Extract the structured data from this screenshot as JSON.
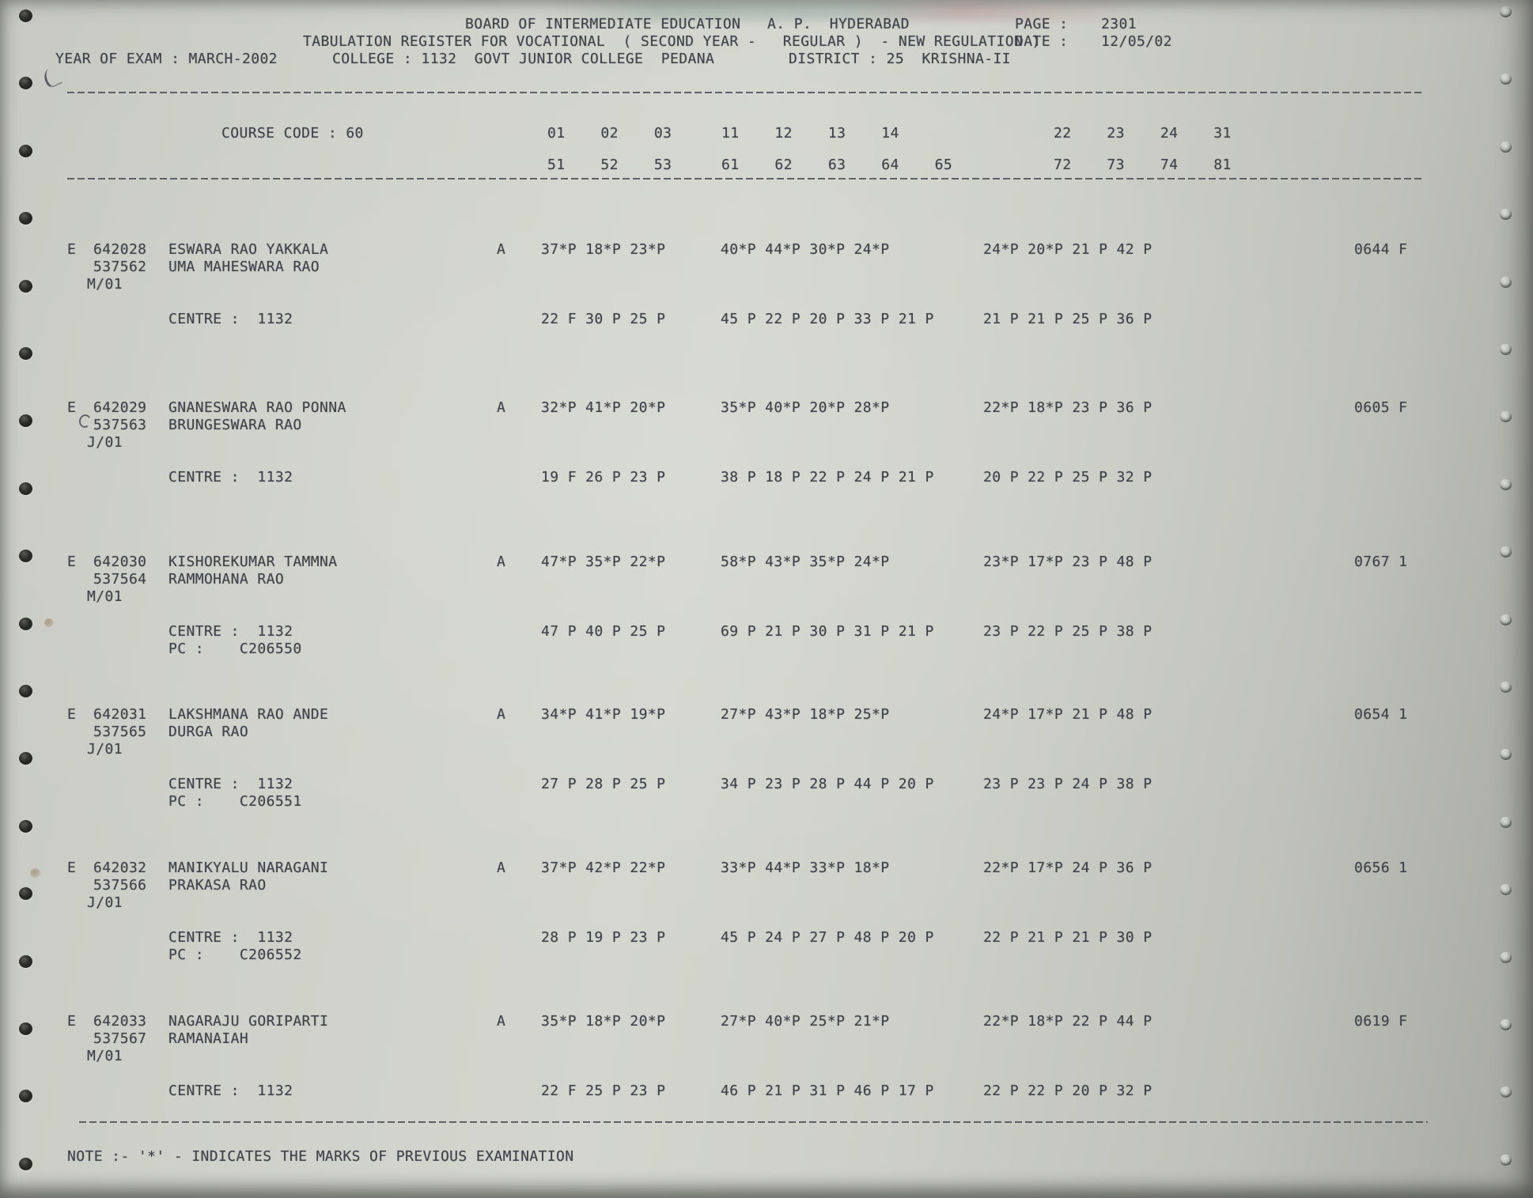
{
  "header": {
    "title": "BOARD OF INTERMEDIATE EDUCATION   A. P.  HYDERABAD",
    "page_label": "PAGE :",
    "page_number": "2301",
    "register_title": "TABULATION REGISTER FOR VOCATIONAL  ( SECOND YEAR -   REGULAR )  - NEW REGULATION )",
    "date_label": "DATE :",
    "date_value": "12/05/02",
    "year_of_exam": "YEAR OF EXAM : MARCH-2002",
    "college": "COLLEGE : 1132  GOVT JUNIOR COLLEGE  PEDANA",
    "district": "DISTRICT : 25  KRISHNA-II"
  },
  "course": {
    "label": "COURSE CODE : 60",
    "codes_row1_g1": "01    02    03",
    "codes_row1_g2": "11    12    13    14",
    "codes_row1_g3": "22    23    24    31",
    "codes_row2_g1": "51    52    53",
    "codes_row2_g2": "61    62    63    64    65",
    "codes_row2_g3": "72    73    74    81"
  },
  "records": [
    {
      "series": "E",
      "regno": "642028",
      "name": "ESWARA RAO YAKKALA",
      "attendance": "A",
      "marks1_g1": "37*P 18*P 23*P",
      "marks1_g2": "40*P 44*P 30*P 24*P",
      "marks1_g3": "24*P 20*P 21 P 42 P",
      "total": "0644 F",
      "hallticket": "537562",
      "father": "UMA MAHESWARA RAO",
      "medium": "M/01",
      "centre_line": "CENTRE :  1132",
      "pc_line": "",
      "marks2_g1": "22 F 30 P 25 P",
      "marks2_g2": "45 P 22 P 20 P 33 P 21 P",
      "marks2_g3": "21 P 21 P 25 P 36 P"
    },
    {
      "series": "E",
      "regno": "642029",
      "name": "GNANESWARA RAO PONNA",
      "attendance": "A",
      "marks1_g1": "32*P 41*P 20*P",
      "marks1_g2": "35*P 40*P 20*P 28*P",
      "marks1_g3": "22*P 18*P 23 P 36 P",
      "total": "0605 F",
      "hallticket": "537563",
      "father": "BRUNGESWARA RAO",
      "medium": "J/01",
      "centre_line": "CENTRE :  1132",
      "pc_line": "",
      "marks2_g1": "19 F 26 P 23 P",
      "marks2_g2": "38 P 18 P 22 P 24 P 21 P",
      "marks2_g3": "20 P 22 P 25 P 32 P"
    },
    {
      "series": "E",
      "regno": "642030",
      "name": "KISHOREKUMAR TAMMNA",
      "attendance": "A",
      "marks1_g1": "47*P 35*P 22*P",
      "marks1_g2": "58*P 43*P 35*P 24*P",
      "marks1_g3": "23*P 17*P 23 P 48 P",
      "total": "0767 1",
      "hallticket": "537564",
      "father": "RAMMOHANA RAO",
      "medium": "M/01",
      "centre_line": "CENTRE :  1132",
      "pc_line": "PC :    C206550",
      "marks2_g1": "47 P 40 P 25 P",
      "marks2_g2": "69 P 21 P 30 P 31 P 21 P",
      "marks2_g3": "23 P 22 P 25 P 38 P"
    },
    {
      "series": "E",
      "regno": "642031",
      "name": "LAKSHMANA RAO ANDE",
      "attendance": "A",
      "marks1_g1": "34*P 41*P 19*P",
      "marks1_g2": "27*P 43*P 18*P 25*P",
      "marks1_g3": "24*P 17*P 21 P 48 P",
      "total": "0654 1",
      "hallticket": "537565",
      "father": "DURGA RAO",
      "medium": "J/01",
      "centre_line": "CENTRE :  1132",
      "pc_line": "PC :    C206551",
      "marks2_g1": "27 P 28 P 25 P",
      "marks2_g2": "34 P 23 P 28 P 44 P 20 P",
      "marks2_g3": "23 P 23 P 24 P 38 P"
    },
    {
      "series": "E",
      "regno": "642032",
      "name": "MANIKYALU NARAGANI",
      "attendance": "A",
      "marks1_g1": "37*P 42*P 22*P",
      "marks1_g2": "33*P 44*P 33*P 18*P",
      "marks1_g3": "22*P 17*P 24 P 36 P",
      "total": "0656 1",
      "hallticket": "537566",
      "father": "PRAKASA RAO",
      "medium": "J/01",
      "centre_line": "CENTRE :  1132",
      "pc_line": "PC :    C206552",
      "marks2_g1": "28 P 19 P 23 P",
      "marks2_g2": "45 P 24 P 27 P 48 P 20 P",
      "marks2_g3": "22 P 21 P 21 P 30 P"
    },
    {
      "series": "E",
      "regno": "642033",
      "name": "NAGARAJU GORIPARTI",
      "attendance": "A",
      "marks1_g1": "35*P 18*P 20*P",
      "marks1_g2": "27*P 40*P 25*P 21*P",
      "marks1_g3": "22*P 18*P 22 P 44 P",
      "total": "0619 F",
      "hallticket": "537567",
      "father": "RAMANAIAH",
      "medium": "M/01",
      "centre_line": "CENTRE :  1132",
      "pc_line": "",
      "marks2_g1": "22 F 25 P 23 P",
      "marks2_g2": "46 P 21 P 31 P 46 P 17 P",
      "marks2_g3": "22 P 22 P 20 P 32 P"
    }
  ],
  "note": "NOTE :- '*' - INDICATES THE MARKS OF PREVIOUS EXAMINATION"
}
